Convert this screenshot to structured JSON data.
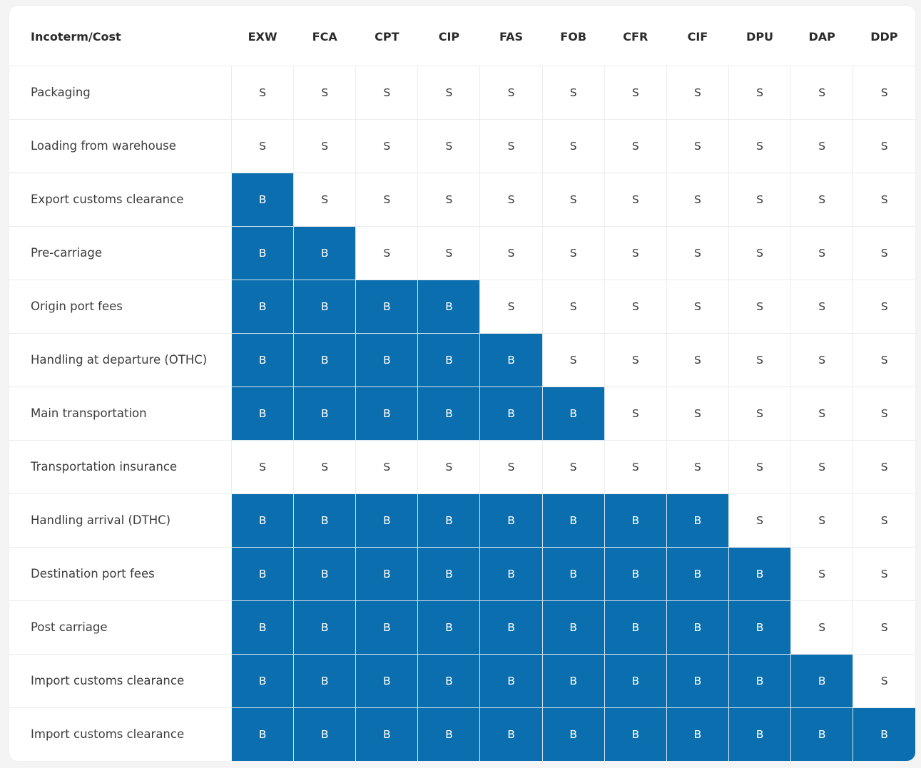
{
  "table": {
    "header_label": "Incoterm/Cost",
    "terms": [
      "EXW",
      "FCA",
      "CPT",
      "CIP",
      "FAS",
      "FOB",
      "CFR",
      "CIF",
      "DPU",
      "DAP",
      "DDP"
    ],
    "highlight_color": "#0b6eaf",
    "rows": [
      {
        "label": "Packaging",
        "cells": [
          "S",
          "S",
          "S",
          "S",
          "S",
          "S",
          "S",
          "S",
          "S",
          "S",
          "S"
        ]
      },
      {
        "label": "Loading from warehouse",
        "cells": [
          "S",
          "S",
          "S",
          "S",
          "S",
          "S",
          "S",
          "S",
          "S",
          "S",
          "S"
        ]
      },
      {
        "label": "Export customs clearance",
        "cells": [
          "B",
          "S",
          "S",
          "S",
          "S",
          "S",
          "S",
          "S",
          "S",
          "S",
          "S"
        ]
      },
      {
        "label": "Pre-carriage",
        "cells": [
          "B",
          "B",
          "S",
          "S",
          "S",
          "S",
          "S",
          "S",
          "S",
          "S",
          "S"
        ]
      },
      {
        "label": "Origin port fees",
        "cells": [
          "B",
          "B",
          "B",
          "B",
          "S",
          "S",
          "S",
          "S",
          "S",
          "S",
          "S"
        ]
      },
      {
        "label": "Handling at departure (OTHC)",
        "cells": [
          "B",
          "B",
          "B",
          "B",
          "B",
          "S",
          "S",
          "S",
          "S",
          "S",
          "S"
        ]
      },
      {
        "label": "Main transportation",
        "cells": [
          "B",
          "B",
          "B",
          "B",
          "B",
          "B",
          "S",
          "S",
          "S",
          "S",
          "S"
        ]
      },
      {
        "label": "Transportation insurance",
        "cells": [
          "S",
          "S",
          "S",
          "S",
          "S",
          "S",
          "S",
          "S",
          "S",
          "S",
          "S"
        ]
      },
      {
        "label": "Handling arrival (DTHC)",
        "cells": [
          "B",
          "B",
          "B",
          "B",
          "B",
          "B",
          "B",
          "B",
          "S",
          "S",
          "S"
        ]
      },
      {
        "label": "Destination port fees",
        "cells": [
          "B",
          "B",
          "B",
          "B",
          "B",
          "B",
          "B",
          "B",
          "B",
          "S",
          "S"
        ]
      },
      {
        "label": "Post carriage",
        "cells": [
          "B",
          "B",
          "B",
          "B",
          "B",
          "B",
          "B",
          "B",
          "B",
          "S",
          "S"
        ]
      },
      {
        "label": "Import customs clearance",
        "cells": [
          "B",
          "B",
          "B",
          "B",
          "B",
          "B",
          "B",
          "B",
          "B",
          "B",
          "S"
        ]
      },
      {
        "label": "Import customs clearance",
        "cells": [
          "B",
          "B",
          "B",
          "B",
          "B",
          "B",
          "B",
          "B",
          "B",
          "B",
          "B"
        ]
      }
    ]
  }
}
